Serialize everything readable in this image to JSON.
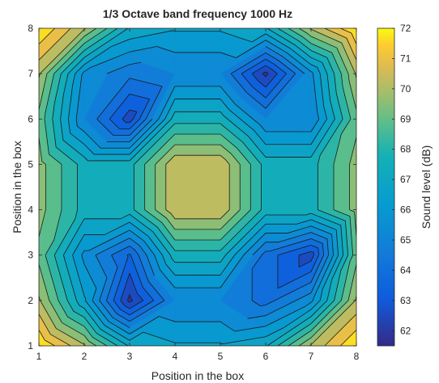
{
  "chart_data": {
    "type": "contour",
    "title": "1/3 Octave band frequency 1000 Hz",
    "xlabel": "Position in the box",
    "ylabel": "Position in the box",
    "colorbar_label": "Sound level (dB)",
    "x": [
      1,
      2,
      3,
      4,
      5,
      6,
      7,
      8
    ],
    "y": [
      1,
      2,
      3,
      4,
      5,
      6,
      7,
      8
    ],
    "xlim": [
      1,
      8
    ],
    "ylim": [
      1,
      8
    ],
    "x_ticks": [
      "1",
      "2",
      "3",
      "4",
      "5",
      "6",
      "7",
      "8"
    ],
    "y_ticks": [
      "1",
      "2",
      "3",
      "4",
      "5",
      "6",
      "7",
      "8"
    ],
    "clim": [
      61.5,
      72
    ],
    "colorbar_ticks": [
      "62",
      "63",
      "64",
      "65",
      "66",
      "67",
      "68",
      "69",
      "70",
      "71",
      "72"
    ],
    "contour_step": 0.7,
    "colormap": "parula",
    "grid": false,
    "z_rows_bottom_to_top": [
      [
        72.0,
        70.0,
        67.0,
        66.5,
        66.5,
        67.0,
        70.0,
        72.0
      ],
      [
        70.0,
        66.5,
        62.0,
        65.0,
        65.0,
        64.0,
        65.5,
        70.0
      ],
      [
        69.0,
        65.5,
        63.5,
        67.5,
        67.5,
        64.0,
        62.5,
        69.0
      ],
      [
        69.5,
        67.5,
        67.5,
        70.5,
        70.5,
        67.5,
        67.5,
        69.5
      ],
      [
        69.5,
        67.5,
        67.5,
        70.5,
        70.5,
        67.5,
        67.5,
        69.5
      ],
      [
        69.0,
        65.0,
        62.5,
        67.5,
        67.5,
        65.0,
        65.0,
        69.0
      ],
      [
        70.0,
        65.5,
        64.5,
        65.0,
        65.0,
        62.0,
        65.5,
        70.0
      ],
      [
        72.0,
        70.0,
        67.0,
        66.5,
        66.5,
        67.0,
        70.0,
        72.0
      ]
    ]
  }
}
